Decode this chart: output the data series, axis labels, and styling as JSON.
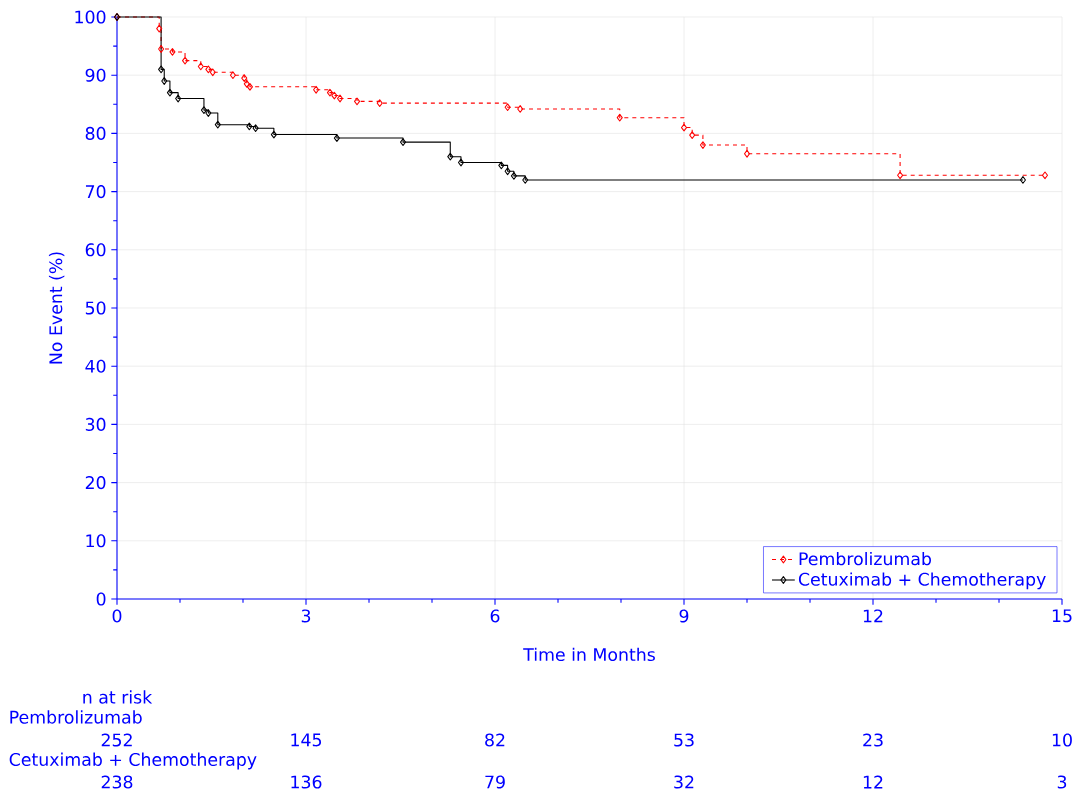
{
  "chart_data": {
    "type": "step",
    "xlabel": "Time in Months",
    "ylabel": "No Event (%)",
    "xlim": [
      0,
      15
    ],
    "xticks": [
      0,
      3,
      6,
      9,
      12,
      15
    ],
    "ylim": [
      0,
      100
    ],
    "yticks": [
      0,
      10,
      20,
      30,
      40,
      50,
      60,
      70,
      80,
      90,
      100
    ],
    "grid": true,
    "legend": "bottom right",
    "marker": "diamond",
    "series": [
      {
        "name": "Pembrolizumab",
        "color": "#ff0000",
        "line_style": "dashed",
        "x": [
          0,
          0.67,
          0.7,
          0.88,
          1.08,
          1.33,
          1.45,
          1.52,
          1.84,
          2.02,
          2.06,
          2.11,
          3.16,
          3.38,
          3.45,
          3.54,
          3.81,
          4.17,
          6.2,
          6.4,
          7.98,
          9.0,
          9.13,
          9.3,
          10.0,
          12.43,
          14.73
        ],
        "values": [
          100,
          98,
          94.5,
          94,
          92.5,
          91.5,
          91,
          90.5,
          90,
          89.5,
          88.5,
          88,
          87.5,
          87,
          86.5,
          86,
          85.5,
          85.2,
          84.5,
          84.2,
          82.7,
          81,
          79.7,
          78,
          76.5,
          72.8,
          72.8
        ]
      },
      {
        "name": "Cetuximab + Chemotherapy",
        "color": "#000000",
        "line_style": "solid",
        "x": [
          0,
          0.7,
          0.75,
          0.84,
          0.97,
          1.38,
          1.45,
          1.6,
          2.1,
          2.2,
          2.49,
          3.49,
          4.54,
          5.29,
          5.46,
          6.1,
          6.2,
          6.3,
          6.48,
          14.38
        ],
        "values": [
          100,
          91,
          89,
          87,
          86,
          84,
          83.5,
          81.5,
          81.2,
          80.9,
          79.8,
          79.2,
          78.5,
          76,
          75,
          74.5,
          73.5,
          72.7,
          72,
          72
        ]
      }
    ],
    "annotations": [
      "n at risk",
      "Pembrolizumab",
      "252",
      "145",
      "82",
      "53",
      "23",
      "10",
      "Cetuximab + Chemotherapy",
      "238",
      "136",
      "79",
      "32",
      "12",
      "3"
    ]
  }
}
